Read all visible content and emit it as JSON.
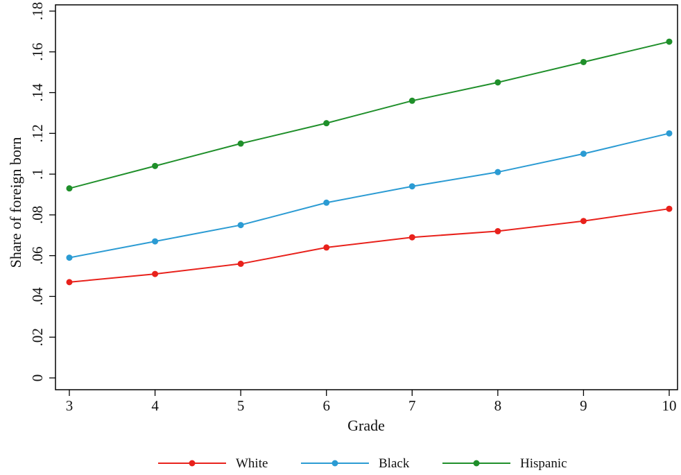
{
  "chart_data": {
    "type": "line",
    "title": "",
    "xlabel": "Grade",
    "ylabel": "Share of foreign born",
    "x": [
      3,
      4,
      5,
      6,
      7,
      8,
      9,
      10
    ],
    "xlim": [
      3,
      10
    ],
    "ylim": [
      0,
      0.18
    ],
    "x_ticks": [
      "3",
      "4",
      "5",
      "6",
      "7",
      "8",
      "9",
      "10"
    ],
    "y_tick_values": [
      0,
      0.02,
      0.04,
      0.06,
      0.08,
      0.1,
      0.12,
      0.14,
      0.16,
      0.18
    ],
    "y_ticks": [
      "0",
      ".02",
      ".04",
      ".06",
      ".08",
      ".1",
      ".12",
      ".14",
      ".16",
      ".18"
    ],
    "grid": false,
    "legend_position": "bottom",
    "series": [
      {
        "name": "White",
        "color": "#e8211b",
        "values": [
          0.047,
          0.051,
          0.056,
          0.064,
          0.069,
          0.072,
          0.077,
          0.083
        ]
      },
      {
        "name": "Black",
        "color": "#2b9bd3",
        "values": [
          0.059,
          0.067,
          0.075,
          0.086,
          0.094,
          0.101,
          0.11,
          0.12
        ]
      },
      {
        "name": "Hispanic",
        "color": "#1f8f2a",
        "values": [
          0.093,
          0.104,
          0.115,
          0.125,
          0.136,
          0.145,
          0.155,
          0.165
        ]
      }
    ]
  }
}
